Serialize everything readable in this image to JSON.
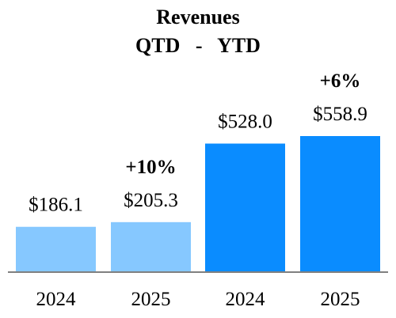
{
  "chart_data": {
    "type": "bar",
    "title": "Revenues",
    "subtitle": "QTD   -   YTD",
    "categories": [
      "2024",
      "2025",
      "2024",
      "2025"
    ],
    "values": [
      186.1,
      205.3,
      528.0,
      558.9
    ],
    "value_labels": [
      "$186.1",
      "$205.3",
      "$528.0",
      "$558.9"
    ],
    "changes": [
      {
        "label": "+10%",
        "bar_index": 1
      },
      {
        "label": "+6%",
        "bar_index": 3
      }
    ],
    "groups": [
      {
        "name": "QTD",
        "bars": [
          0,
          1
        ],
        "color": "#86C8FF"
      },
      {
        "name": "YTD",
        "bars": [
          2,
          3
        ],
        "color": "#0A8CFF"
      }
    ],
    "ylim": [
      0,
      620
    ],
    "grid": false,
    "axis_color": "#808080"
  }
}
